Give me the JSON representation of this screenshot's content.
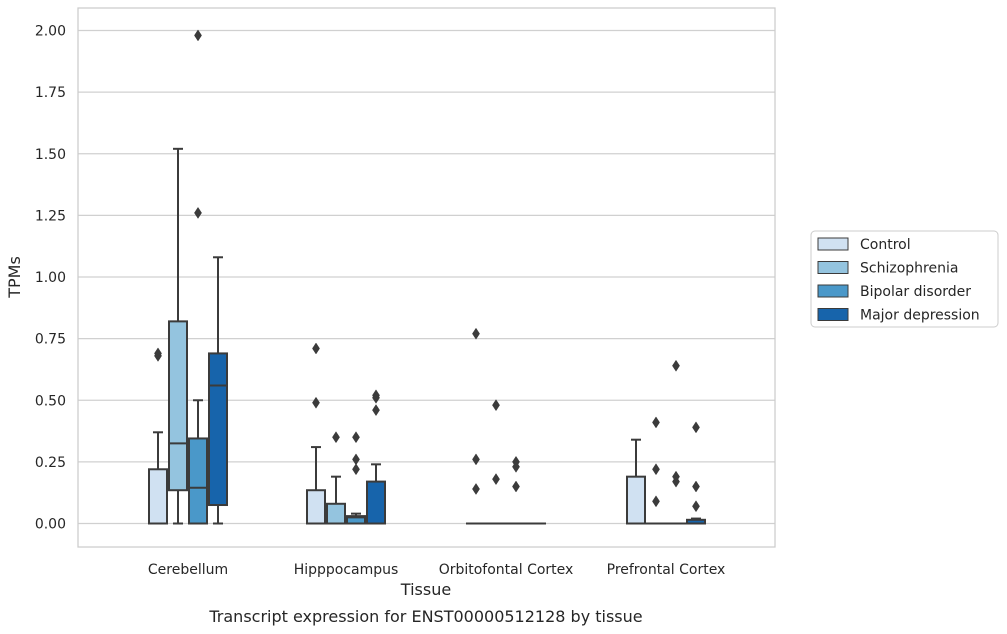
{
  "chart_data": {
    "type": "box",
    "title": "",
    "caption": "Transcript expression for ENST00000512128 by tissue",
    "xlabel": "Tissue",
    "ylabel": "TPMs",
    "ylim": [
      -0.1,
      2.08
    ],
    "yticks": [
      "0.00",
      "0.25",
      "0.50",
      "0.75",
      "1.00",
      "1.25",
      "1.50",
      "1.75",
      "2.00"
    ],
    "grid": true,
    "legend_position": "right",
    "categories": [
      "Cerebellum",
      "Hipppocampus",
      "Orbitofontal Cortex",
      "Prefrontal Cortex"
    ],
    "series": [
      {
        "name": "Control",
        "color": "#d0e1f2",
        "boxes": [
          {
            "q1": 0.0,
            "median": 0.0,
            "q3": 0.22,
            "whisker_low": 0.0,
            "whisker_high": 0.37,
            "outliers": [
              0.68,
              0.69
            ]
          },
          {
            "q1": 0.0,
            "median": 0.0,
            "q3": 0.135,
            "whisker_low": 0.0,
            "whisker_high": 0.31,
            "outliers": [
              0.49,
              0.71
            ]
          },
          {
            "q1": 0.0,
            "median": 0.0,
            "q3": 0.0,
            "whisker_low": 0.0,
            "whisker_high": 0.0,
            "outliers": [
              0.14,
              0.26,
              0.77
            ]
          },
          {
            "q1": 0.0,
            "median": 0.0,
            "q3": 0.19,
            "whisker_low": 0.0,
            "whisker_high": 0.34,
            "outliers": []
          }
        ]
      },
      {
        "name": "Schizophrenia",
        "color": "#94c4df",
        "boxes": [
          {
            "q1": 0.135,
            "median": 0.325,
            "q3": 0.82,
            "whisker_low": 0.0,
            "whisker_high": 1.52,
            "outliers": []
          },
          {
            "q1": 0.0,
            "median": 0.0,
            "q3": 0.08,
            "whisker_low": 0.0,
            "whisker_high": 0.19,
            "outliers": [
              0.35
            ]
          },
          {
            "q1": 0.0,
            "median": 0.0,
            "q3": 0.0,
            "whisker_low": 0.0,
            "whisker_high": 0.0,
            "outliers": [
              0.18,
              0.48
            ]
          },
          {
            "q1": 0.0,
            "median": 0.0,
            "q3": 0.0,
            "whisker_low": 0.0,
            "whisker_high": 0.0,
            "outliers": [
              0.09,
              0.22,
              0.41
            ]
          }
        ]
      },
      {
        "name": "Bipolar disorder",
        "color": "#4a98c9",
        "boxes": [
          {
            "q1": 0.0,
            "median": 0.145,
            "q3": 0.345,
            "whisker_low": 0.0,
            "whisker_high": 0.5,
            "outliers": [
              1.26,
              1.98
            ]
          },
          {
            "q1": 0.0,
            "median": 0.025,
            "q3": 0.03,
            "whisker_low": 0.0,
            "whisker_high": 0.04,
            "outliers": [
              0.22,
              0.26,
              0.35
            ]
          },
          {
            "q1": 0.0,
            "median": 0.0,
            "q3": 0.0,
            "whisker_low": 0.0,
            "whisker_high": 0.0,
            "outliers": [
              0.15,
              0.23,
              0.25
            ]
          },
          {
            "q1": 0.0,
            "median": 0.0,
            "q3": 0.0,
            "whisker_low": 0.0,
            "whisker_high": 0.0,
            "outliers": [
              0.17,
              0.19,
              0.64
            ]
          }
        ]
      },
      {
        "name": "Major depression",
        "color": "#1764ab",
        "boxes": [
          {
            "q1": 0.075,
            "median": 0.56,
            "q3": 0.69,
            "whisker_low": 0.0,
            "whisker_high": 1.08,
            "outliers": []
          },
          {
            "q1": 0.0,
            "median": 0.0,
            "q3": 0.17,
            "whisker_low": 0.0,
            "whisker_high": 0.24,
            "outliers": [
              0.46,
              0.51,
              0.52
            ]
          },
          {
            "q1": 0.0,
            "median": 0.0,
            "q3": 0.0,
            "whisker_low": 0.0,
            "whisker_high": 0.0,
            "outliers": []
          },
          {
            "q1": 0.0,
            "median": 0.0,
            "q3": 0.015,
            "whisker_low": 0.0,
            "whisker_high": 0.02,
            "outliers": [
              0.07,
              0.15,
              0.39
            ]
          }
        ]
      }
    ]
  }
}
